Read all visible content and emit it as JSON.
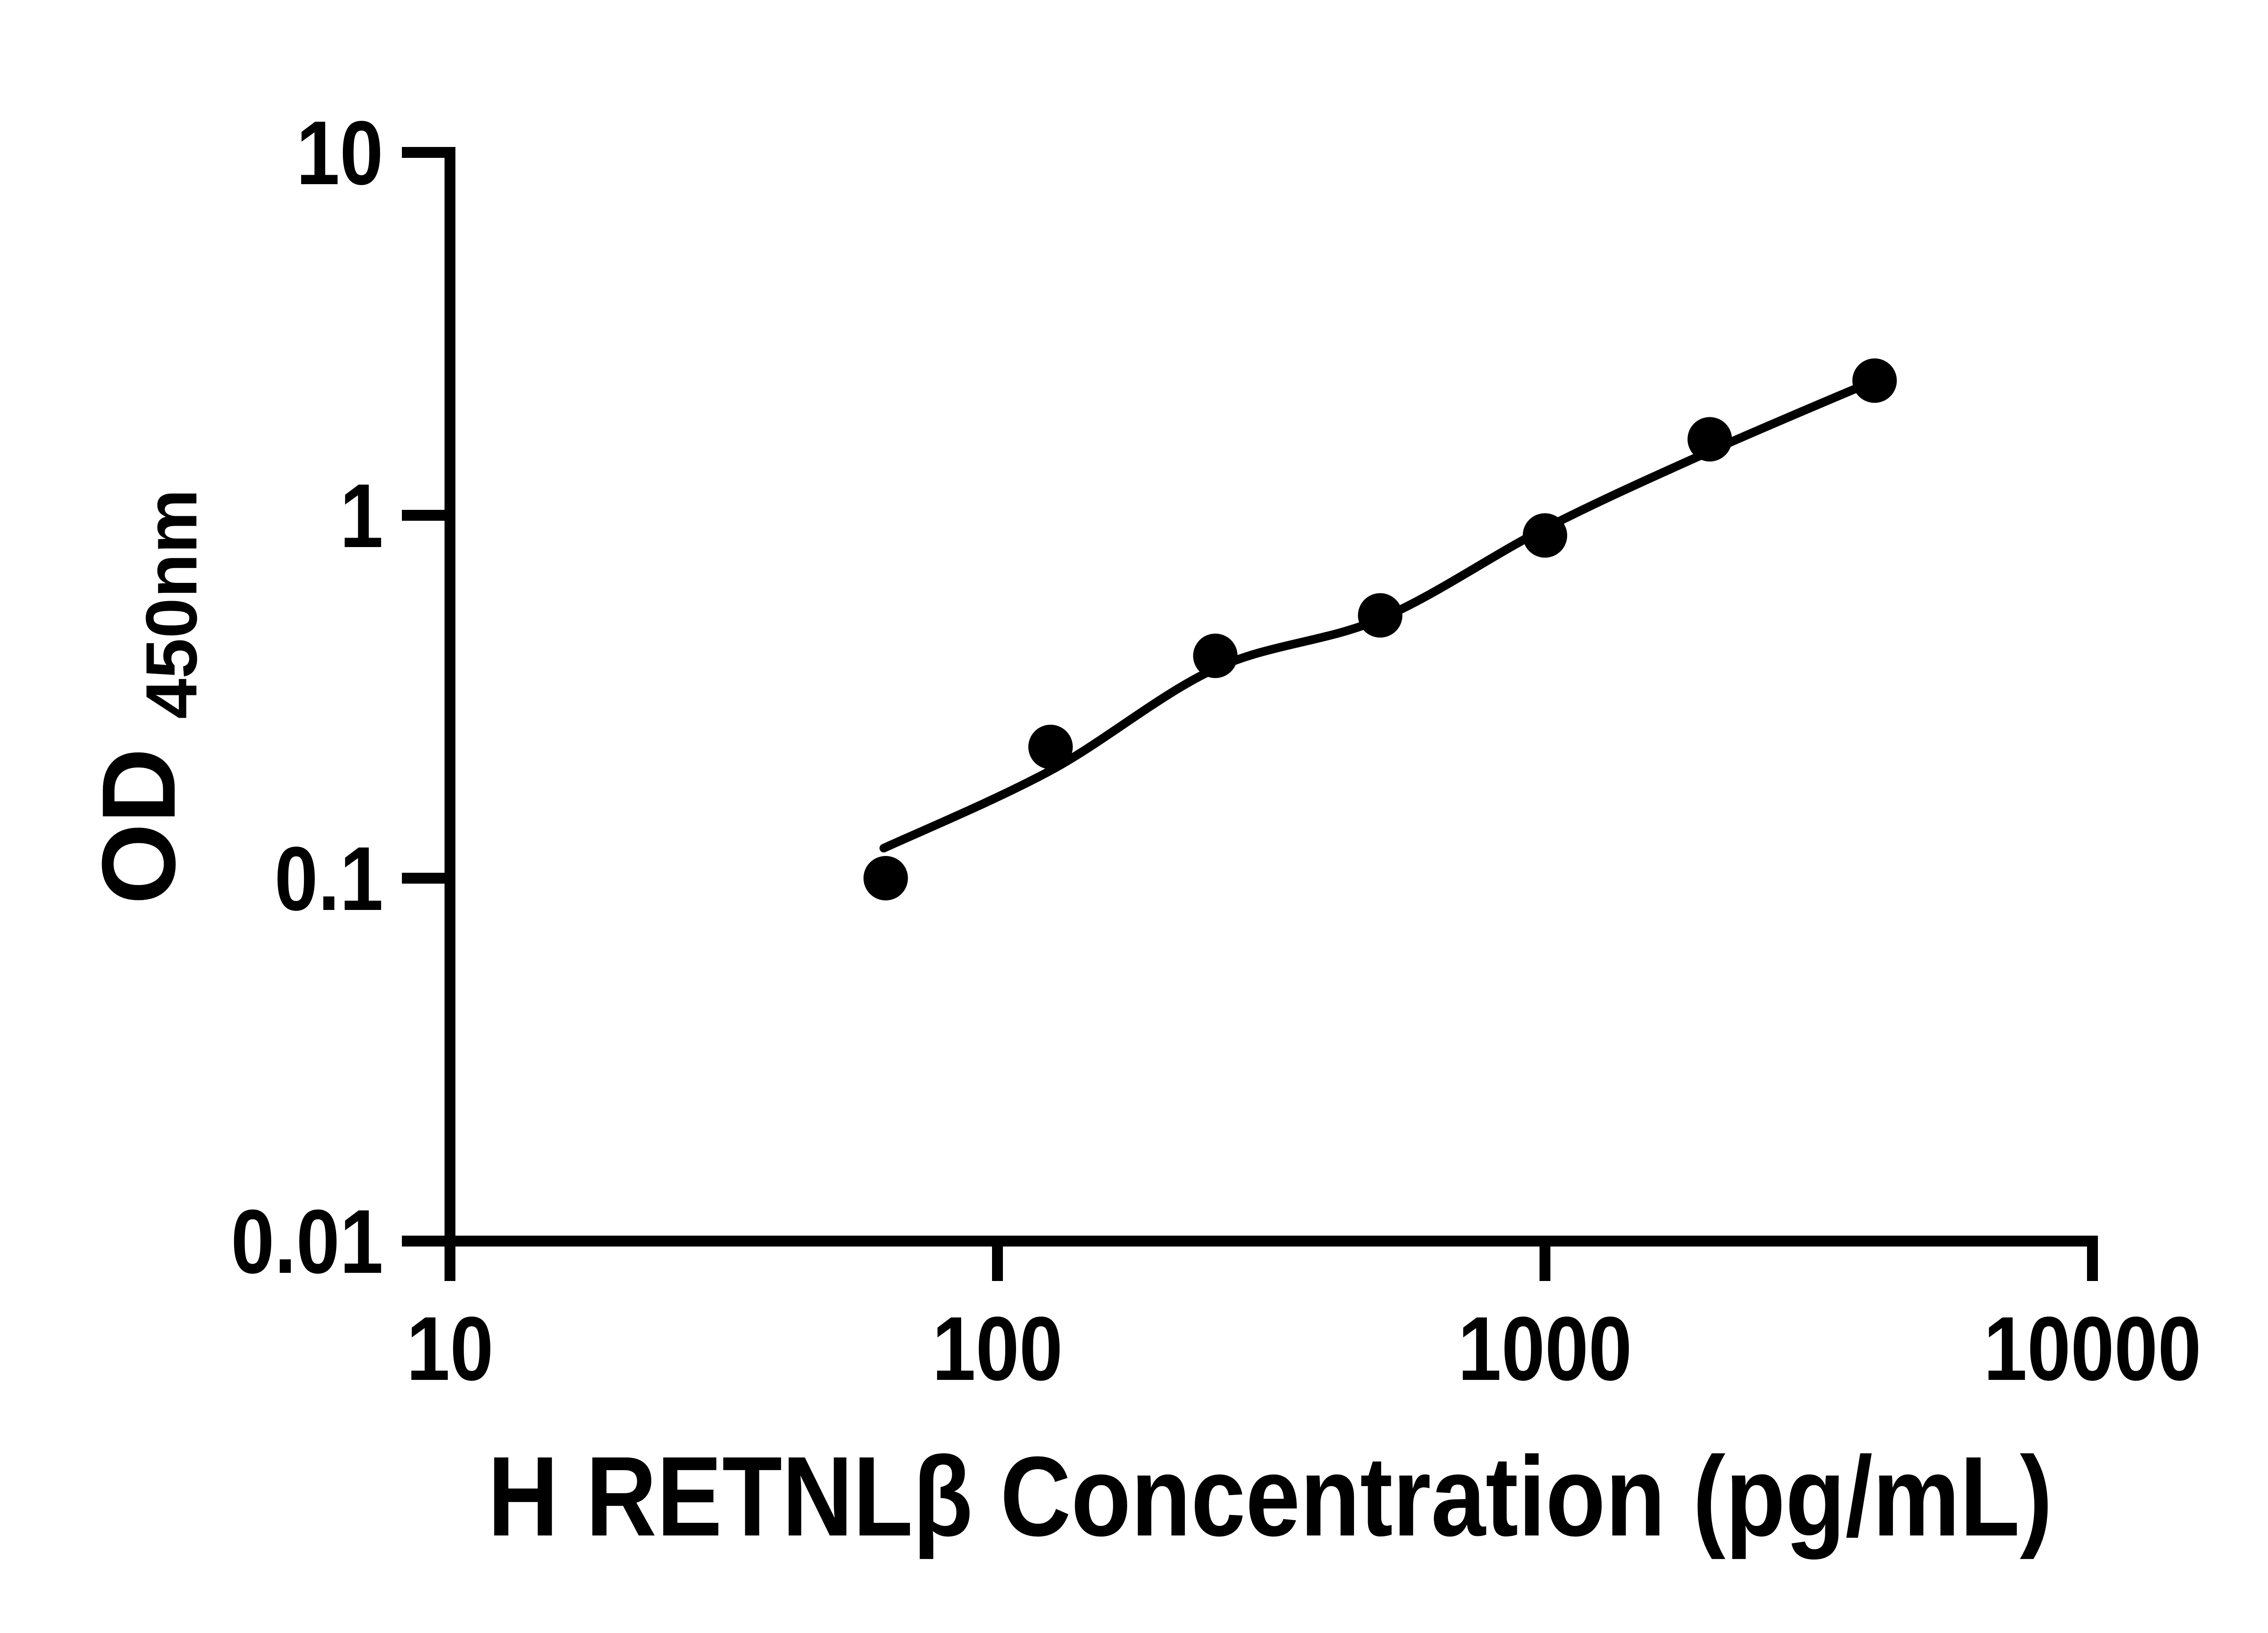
{
  "chart_data": {
    "type": "scatter",
    "title": "",
    "xlabel": "H RETNLβ Concentration (pg/mL)",
    "ylabel": "OD",
    "ylabel_subscript": "450nm",
    "x_scale": "log",
    "y_scale": "log",
    "xlim": [
      10,
      10000
    ],
    "ylim": [
      0.01,
      10
    ],
    "grid": false,
    "legend": "none",
    "x_ticks": {
      "values": [
        10,
        100,
        1000,
        10000
      ],
      "labels": [
        "10",
        "100",
        "1000",
        "10000"
      ]
    },
    "y_ticks": {
      "values": [
        10,
        1,
        0.1,
        0.01
      ],
      "labels": [
        "10",
        "1",
        "0.1",
        "0.01"
      ]
    },
    "series": [
      {
        "name": "standard-points",
        "type": "scatter",
        "marker": "filled-circle",
        "color": "#000000",
        "x": [
          62.5,
          125,
          250,
          500,
          1000,
          2000,
          4000
        ],
        "y": [
          0.1,
          0.23,
          0.41,
          0.53,
          0.88,
          1.62,
          2.35
        ]
      },
      {
        "name": "fit-curve",
        "type": "line",
        "color": "#000000",
        "x": [
          62,
          125,
          250,
          500,
          1000,
          2000,
          4000
        ],
        "y": [
          0.121,
          0.198,
          0.378,
          0.518,
          0.92,
          1.5,
          2.35
        ]
      }
    ],
    "colors": {
      "foreground": "#000000",
      "background": "#ffffff"
    }
  }
}
